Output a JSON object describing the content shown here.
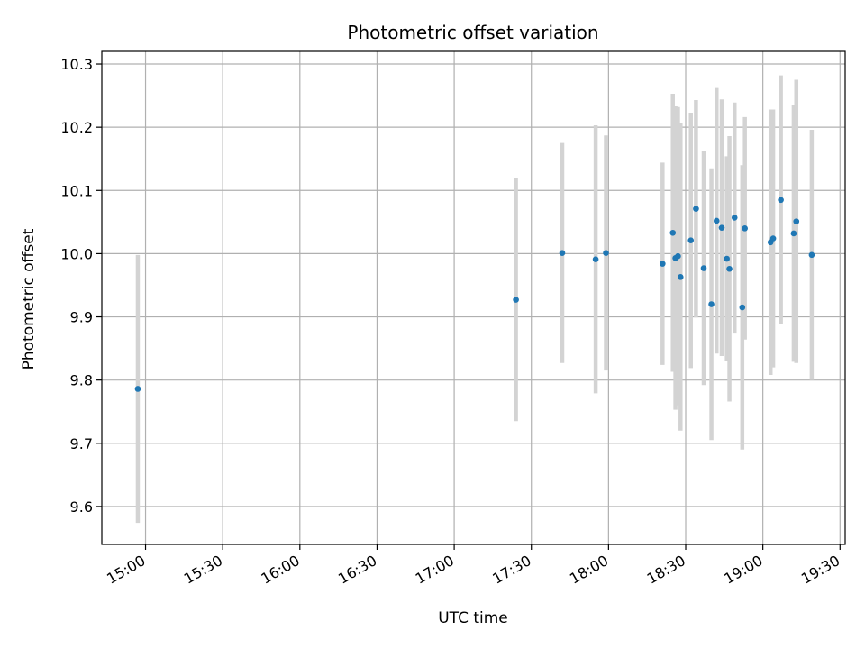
{
  "chart_data": {
    "type": "scatter",
    "title": "Photometric offset variation",
    "xlabel": "UTC time",
    "ylabel": "Photometric offset",
    "x_axis_type": "time",
    "xlim": [
      "14:43",
      "19:32"
    ],
    "ylim": [
      9.54,
      10.32
    ],
    "grid": true,
    "x_ticks": [
      "15:00",
      "15:30",
      "16:00",
      "16:30",
      "17:00",
      "17:30",
      "18:00",
      "18:30",
      "19:00",
      "19:30"
    ],
    "y_ticks": [
      9.6,
      9.7,
      9.8,
      9.9,
      10.0,
      10.1,
      10.2,
      10.3
    ],
    "colors": {
      "points": "#1f77b4",
      "error_bars": "#d3d3d3",
      "grid": "#b0b0b0"
    },
    "points": [
      {
        "x": "14:57",
        "y": 9.786,
        "err": 0.212
      },
      {
        "x": "17:24",
        "y": 9.927,
        "err": 0.192
      },
      {
        "x": "17:42",
        "y": 10.001,
        "err": 0.174
      },
      {
        "x": "17:55",
        "y": 9.991,
        "err": 0.212
      },
      {
        "x": "17:59",
        "y": 10.001,
        "err": 0.186
      },
      {
        "x": "18:21",
        "y": 9.984,
        "err": 0.16
      },
      {
        "x": "18:25",
        "y": 10.033,
        "err": 0.22
      },
      {
        "x": "18:26",
        "y": 9.993,
        "err": 0.24
      },
      {
        "x": "18:27",
        "y": 9.996,
        "err": 0.236
      },
      {
        "x": "18:28",
        "y": 9.963,
        "err": 0.243
      },
      {
        "x": "18:32",
        "y": 10.021,
        "err": 0.202
      },
      {
        "x": "18:34",
        "y": 10.071,
        "err": 0.172
      },
      {
        "x": "18:37",
        "y": 9.977,
        "err": 0.185
      },
      {
        "x": "18:40",
        "y": 9.92,
        "err": 0.215
      },
      {
        "x": "18:42",
        "y": 10.052,
        "err": 0.21
      },
      {
        "x": "18:44",
        "y": 10.041,
        "err": 0.203
      },
      {
        "x": "18:46",
        "y": 9.992,
        "err": 0.162
      },
      {
        "x": "18:47",
        "y": 9.976,
        "err": 0.21
      },
      {
        "x": "18:49",
        "y": 10.057,
        "err": 0.182
      },
      {
        "x": "18:52",
        "y": 9.915,
        "err": 0.225
      },
      {
        "x": "18:53",
        "y": 10.04,
        "err": 0.176
      },
      {
        "x": "19:03",
        "y": 10.018,
        "err": 0.21
      },
      {
        "x": "19:04",
        "y": 10.024,
        "err": 0.204
      },
      {
        "x": "19:07",
        "y": 10.085,
        "err": 0.197
      },
      {
        "x": "19:12",
        "y": 10.032,
        "err": 0.203
      },
      {
        "x": "19:13",
        "y": 10.051,
        "err": 0.224
      },
      {
        "x": "19:19",
        "y": 9.998,
        "err": 0.198
      }
    ]
  }
}
